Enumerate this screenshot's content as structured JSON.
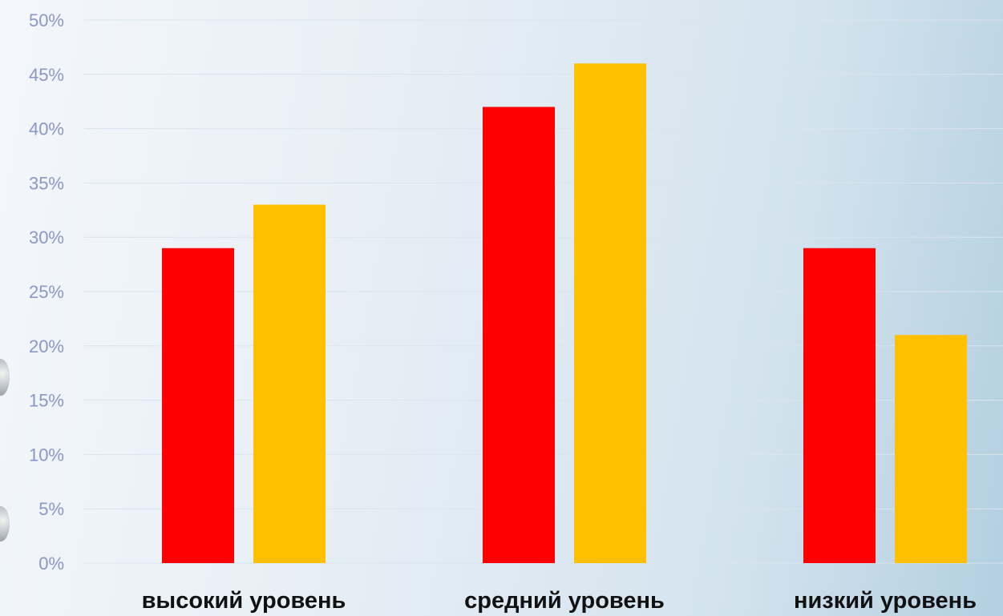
{
  "chart_data": {
    "type": "bar",
    "categories": [
      "высокий уровень",
      "средний уровень",
      "низкий уровень"
    ],
    "series": [
      {
        "values": [
          29,
          42,
          29
        ],
        "color": "#ff0000"
      },
      {
        "values": [
          33,
          46,
          21
        ],
        "color": "#ffc000"
      }
    ],
    "yticks": [
      "0%",
      "5%",
      "10%",
      "15%",
      "20%",
      "25%",
      "30%",
      "35%",
      "40%",
      "45%",
      "50%"
    ],
    "ylim": [
      0,
      50
    ],
    "grid": true,
    "title": "",
    "xlabel": "",
    "ylabel": ""
  }
}
